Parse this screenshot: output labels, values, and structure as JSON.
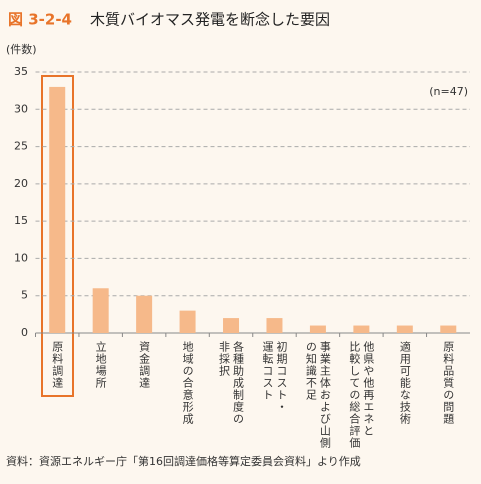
{
  "chart_data": {
    "type": "bar",
    "figure_label": "図 3-2-4",
    "title": "木質バイオマス発電を断念した要因",
    "y_label": "(件数)",
    "annotation": "(n=47)",
    "source": "資料：資源エネルギー庁「第16回調達価格等算定委員会資料」より作成",
    "categories": [
      [
        "原料調達"
      ],
      [
        "立地場所"
      ],
      [
        "資金調達"
      ],
      [
        "地域の合意形成"
      ],
      [
        "各種助成制度の",
        "非採択"
      ],
      [
        "初期コスト・",
        "運転コスト"
      ],
      [
        "事業主体および山側",
        "の知識不足"
      ],
      [
        "他県や他再エネと",
        "比較しての総合評価"
      ],
      [
        "適用可能な技術"
      ],
      [
        "原料品質の問題"
      ]
    ],
    "values": [
      33,
      6,
      5,
      3,
      2,
      2,
      1,
      1,
      1,
      1
    ],
    "color": "#f6b98a",
    "ylim": [
      0,
      35
    ],
    "yticks": [
      0,
      5,
      10,
      15,
      20,
      25,
      30,
      35
    ],
    "grid": true
  }
}
